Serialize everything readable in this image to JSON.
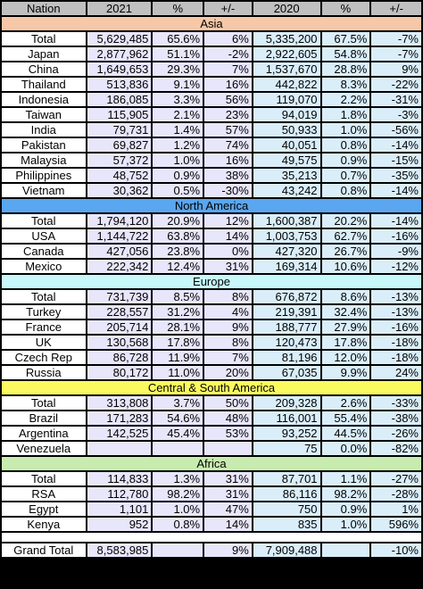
{
  "headers": [
    "Nation",
    "2021",
    "%",
    "+/-",
    "2020",
    "%",
    "+/-"
  ],
  "colors": {
    "name_col": "#ffffff",
    "y2021": "#e8e6fb",
    "y2020": "#daeefa",
    "asia": "#f6c8a8",
    "north_america": "#5aa6f0",
    "europe": "#c8f8fa",
    "csa": "#fafa60",
    "africa": "#c8ecb0",
    "header": "#c0c0c0"
  },
  "sections": [
    {
      "title": "Asia",
      "color_key": "asia",
      "rows": [
        [
          "Total",
          "5,629,485",
          "65.6%",
          "6%",
          "5,335,200",
          "67.5%",
          "-7%"
        ],
        [
          "Japan",
          "2,877,962",
          "51.1%",
          "-2%",
          "2,922,605",
          "54.8%",
          "-7%"
        ],
        [
          "China",
          "1,649,653",
          "29.3%",
          "7%",
          "1,537,670",
          "28.8%",
          "9%"
        ],
        [
          "Thailand",
          "513,836",
          "9.1%",
          "16%",
          "442,822",
          "8.3%",
          "-22%"
        ],
        [
          "Indonesia",
          "186,085",
          "3.3%",
          "56%",
          "119,070",
          "2.2%",
          "-31%"
        ],
        [
          "Taiwan",
          "115,905",
          "2.1%",
          "23%",
          "94,019",
          "1.8%",
          "-3%"
        ],
        [
          "India",
          "79,731",
          "1.4%",
          "57%",
          "50,933",
          "1.0%",
          "-56%"
        ],
        [
          "Pakistan",
          "69,827",
          "1.2%",
          "74%",
          "40,051",
          "0.8%",
          "-14%"
        ],
        [
          "Malaysia",
          "57,372",
          "1.0%",
          "16%",
          "49,575",
          "0.9%",
          "-15%"
        ],
        [
          "Philippines",
          "48,752",
          "0.9%",
          "38%",
          "35,213",
          "0.7%",
          "-35%"
        ],
        [
          "Vietnam",
          "30,362",
          "0.5%",
          "-30%",
          "43,242",
          "0.8%",
          "-14%"
        ]
      ]
    },
    {
      "title": "North America",
      "color_key": "north_america",
      "rows": [
        [
          "Total",
          "1,794,120",
          "20.9%",
          "12%",
          "1,600,387",
          "20.2%",
          "-14%"
        ],
        [
          "USA",
          "1,144,722",
          "63.8%",
          "14%",
          "1,003,753",
          "62.7%",
          "-16%"
        ],
        [
          "Canada",
          "427,056",
          "23.8%",
          "0%",
          "427,320",
          "26.7%",
          "-9%"
        ],
        [
          "Mexico",
          "222,342",
          "12.4%",
          "31%",
          "169,314",
          "10.6%",
          "-12%"
        ]
      ]
    },
    {
      "title": "Europe",
      "color_key": "europe",
      "rows": [
        [
          "Total",
          "731,739",
          "8.5%",
          "8%",
          "676,872",
          "8.6%",
          "-13%"
        ],
        [
          "Turkey",
          "228,557",
          "31.2%",
          "4%",
          "219,391",
          "32.4%",
          "-13%"
        ],
        [
          "France",
          "205,714",
          "28.1%",
          "9%",
          "188,777",
          "27.9%",
          "-16%"
        ],
        [
          "UK",
          "130,568",
          "17.8%",
          "8%",
          "120,473",
          "17.8%",
          "-18%"
        ],
        [
          "Czech Rep",
          "86,728",
          "11.9%",
          "7%",
          "81,196",
          "12.0%",
          "-18%"
        ],
        [
          "Russia",
          "80,172",
          "11.0%",
          "20%",
          "67,035",
          "9.9%",
          "24%"
        ]
      ]
    },
    {
      "title": "Central & South America",
      "color_key": "csa",
      "rows": [
        [
          "Total",
          "313,808",
          "3.7%",
          "50%",
          "209,328",
          "2.6%",
          "-33%"
        ],
        [
          "Brazil",
          "171,283",
          "54.6%",
          "48%",
          "116,001",
          "55.4%",
          "-38%"
        ],
        [
          "Argentina",
          "142,525",
          "45.4%",
          "53%",
          "93,252",
          "44.5%",
          "-26%"
        ],
        [
          "Venezuela",
          "",
          "",
          "",
          "75",
          "0.0%",
          "-82%"
        ]
      ]
    },
    {
      "title": "Africa",
      "color_key": "africa",
      "rows": [
        [
          "Total",
          "114,833",
          "1.3%",
          "31%",
          "87,701",
          "1.1%",
          "-27%"
        ],
        [
          "RSA",
          "112,780",
          "98.2%",
          "31%",
          "86,116",
          "98.2%",
          "-28%"
        ],
        [
          "Egypt",
          "1,101",
          "1.0%",
          "47%",
          "750",
          "0.9%",
          "1%"
        ],
        [
          "Kenya",
          "952",
          "0.8%",
          "14%",
          "835",
          "1.0%",
          "596%"
        ]
      ]
    }
  ],
  "grand_total": [
    "Grand Total",
    "8,583,985",
    "",
    "9%",
    "7,909,488",
    "",
    "-10%"
  ]
}
